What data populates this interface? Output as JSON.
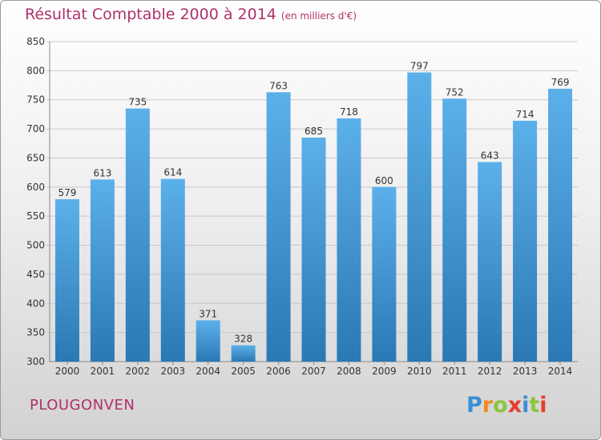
{
  "header": {
    "title": "Résultat Comptable 2000 à 2014",
    "subtitle": "(en milliers d'€)"
  },
  "footer": {
    "commune": "PLOUGONVEN",
    "logo_text": "Proxiti"
  },
  "colors": {
    "title": "#b0306a",
    "bar_top": "#5cb0ea",
    "bar_bottom": "#2a78b4",
    "grid": "#c8c8c8"
  },
  "chart_data": {
    "type": "bar",
    "title": "Résultat Comptable 2000 à 2014",
    "subtitle": "(en milliers d'€)",
    "categories": [
      "2000",
      "2001",
      "2002",
      "2003",
      "2004",
      "2005",
      "2006",
      "2007",
      "2008",
      "2009",
      "2010",
      "2011",
      "2012",
      "2013",
      "2014"
    ],
    "values": [
      579,
      613,
      735,
      614,
      371,
      328,
      763,
      685,
      718,
      600,
      797,
      752,
      643,
      714,
      769
    ],
    "ylim": [
      300,
      850
    ],
    "yticks": [
      300,
      350,
      400,
      450,
      500,
      550,
      600,
      650,
      700,
      750,
      800,
      850
    ],
    "grid": true,
    "data_labels": true
  }
}
